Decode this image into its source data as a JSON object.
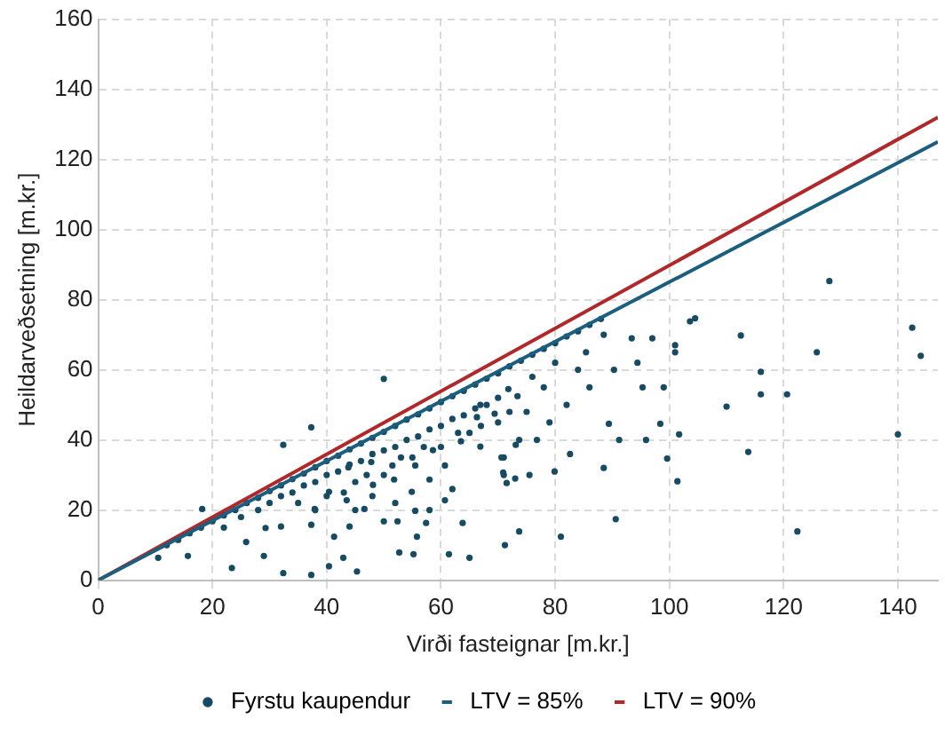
{
  "chart_data": {
    "type": "scatter",
    "xlabel": "Virði fasteignar [m.kr.]",
    "ylabel": "Heildarveðsetning [m.kr.]",
    "xlim": [
      0,
      147
    ],
    "xticks": [
      0,
      20,
      40,
      60,
      80,
      100,
      120,
      140
    ],
    "ylim": [
      0,
      160
    ],
    "yticks": [
      0,
      20,
      40,
      60,
      80,
      100,
      120,
      140,
      160
    ],
    "grid": true,
    "legend": "bottom",
    "line_style": "solid",
    "series": [
      {
        "name": "Fyrstu kaupendur",
        "marker": "circle",
        "color": "#174a63",
        "x": [
          128,
          142.5,
          144,
          140,
          125.8,
          122.4,
          120.6,
          116,
          116,
          113.8,
          112.5,
          110,
          104.5,
          103.6,
          101,
          101,
          99,
          98.4,
          101.7,
          99.6,
          101.4,
          97,
          90.6,
          88.5,
          81,
          73.7,
          71.2,
          95.3,
          95.9,
          91.2,
          89.4,
          90.3,
          94.4,
          93.4,
          88.5,
          85.4,
          82.6,
          79.9,
          76.8,
          73.7,
          71.5,
          73,
          75.5,
          71,
          71,
          18.2,
          23.4,
          32.4,
          37.3,
          50,
          37.3,
          32.4,
          29,
          15.7,
          10.5,
          40.4,
          45.3,
          42.9,
          55.2,
          61.4,
          65,
          25.9,
          29.3,
          32,
          37.3,
          41.3,
          44,
          46.6,
          50,
          52.4,
          52.7,
          55.8,
          57.4,
          63.8,
          60.7,
          55.5,
          37.9,
          40.4,
          43.5,
          48.1,
          51.8,
          54.9,
          58,
          60.7,
          63.5,
          66.9,
          58.6,
          55.5,
          51.5,
          47.8,
          43.8,
          70.6,
          70.9,
          73.1,
          69.4,
          66.9,
          66.3,
          73.4,
          71.8,
          12,
          14,
          16,
          18,
          20,
          22,
          24,
          26,
          28,
          30,
          32,
          34,
          36,
          38,
          40,
          42,
          44,
          46,
          48,
          50,
          52,
          54,
          56,
          58,
          60,
          62,
          64,
          66,
          68,
          70,
          72,
          74,
          76,
          78,
          80,
          82,
          84,
          86,
          88,
          22,
          25,
          28,
          30,
          32,
          34,
          36,
          38,
          40,
          42,
          44,
          46,
          48,
          50,
          52,
          54,
          56,
          58,
          60,
          62,
          64,
          66,
          68,
          70,
          35,
          40,
          45,
          50,
          55,
          60,
          65,
          70,
          75,
          78,
          45,
          48,
          52,
          58,
          62,
          38,
          43,
          47,
          53,
          57,
          63,
          67,
          72,
          76,
          80,
          84,
          82,
          86,
          79
        ],
        "values": [
          85.3,
          72,
          64,
          41.6,
          65,
          13.9,
          53,
          59.4,
          53,
          36.6,
          69.8,
          49.5,
          74.7,
          73.8,
          67,
          65,
          55,
          44.6,
          41.6,
          34.7,
          28.2,
          69,
          17.4,
          32,
          12.4,
          13.9,
          10,
          55,
          40,
          40,
          44.6,
          60,
          62,
          69,
          70,
          65,
          36,
          31,
          40,
          40,
          27.7,
          29,
          30,
          30,
          35,
          20.3,
          3.5,
          38.6,
          43.6,
          57.4,
          1.5,
          2,
          6.9,
          6.9,
          6.4,
          4,
          2.5,
          6.4,
          7.4,
          7.4,
          6.4,
          10.9,
          14.9,
          15.3,
          15.8,
          12.4,
          15.3,
          20.3,
          16.8,
          16.8,
          7.9,
          12.4,
          16.3,
          16.3,
          22.8,
          19.8,
          20.3,
          25.2,
          22.8,
          27.2,
          28.7,
          25.2,
          28.7,
          32.7,
          39.6,
          38.1,
          37.1,
          32.7,
          32.7,
          33.7,
          32.2,
          35,
          30.7,
          38.6,
          47.5,
          50,
          46.5,
          52.5,
          54.5,
          10,
          11.5,
          13.4,
          15,
          16.8,
          18.5,
          20,
          22,
          23.5,
          25.4,
          27,
          28.8,
          30.4,
          32.2,
          34,
          35.5,
          37.3,
          39,
          40.6,
          42.3,
          44,
          45.8,
          47.3,
          49,
          50.8,
          52.5,
          54,
          55.8,
          57.5,
          59,
          61,
          62.6,
          64.3,
          66,
          67.6,
          69.5,
          71,
          72.8,
          74.5,
          15,
          18,
          20,
          22,
          24,
          25,
          27,
          28,
          30,
          31,
          33,
          34,
          36,
          37,
          38,
          40,
          41,
          43,
          44,
          46,
          47,
          49,
          50,
          52,
          22,
          24,
          28,
          30,
          35,
          38,
          42,
          45,
          48,
          55,
          20,
          24,
          22,
          20,
          26,
          20,
          25,
          30,
          35,
          38,
          42,
          44,
          48,
          58,
          62,
          60,
          50,
          55,
          45
        ]
      },
      {
        "name": "LTV = 85%",
        "type": "line",
        "marker": "none",
        "color": "#1b5e7e",
        "x": [
          0,
          147
        ],
        "values": [
          0,
          125
        ]
      },
      {
        "name": "LTV = 90%",
        "type": "line",
        "marker": "none",
        "color": "#b0282a",
        "x": [
          0,
          147
        ],
        "values": [
          0,
          132
        ]
      }
    ]
  }
}
